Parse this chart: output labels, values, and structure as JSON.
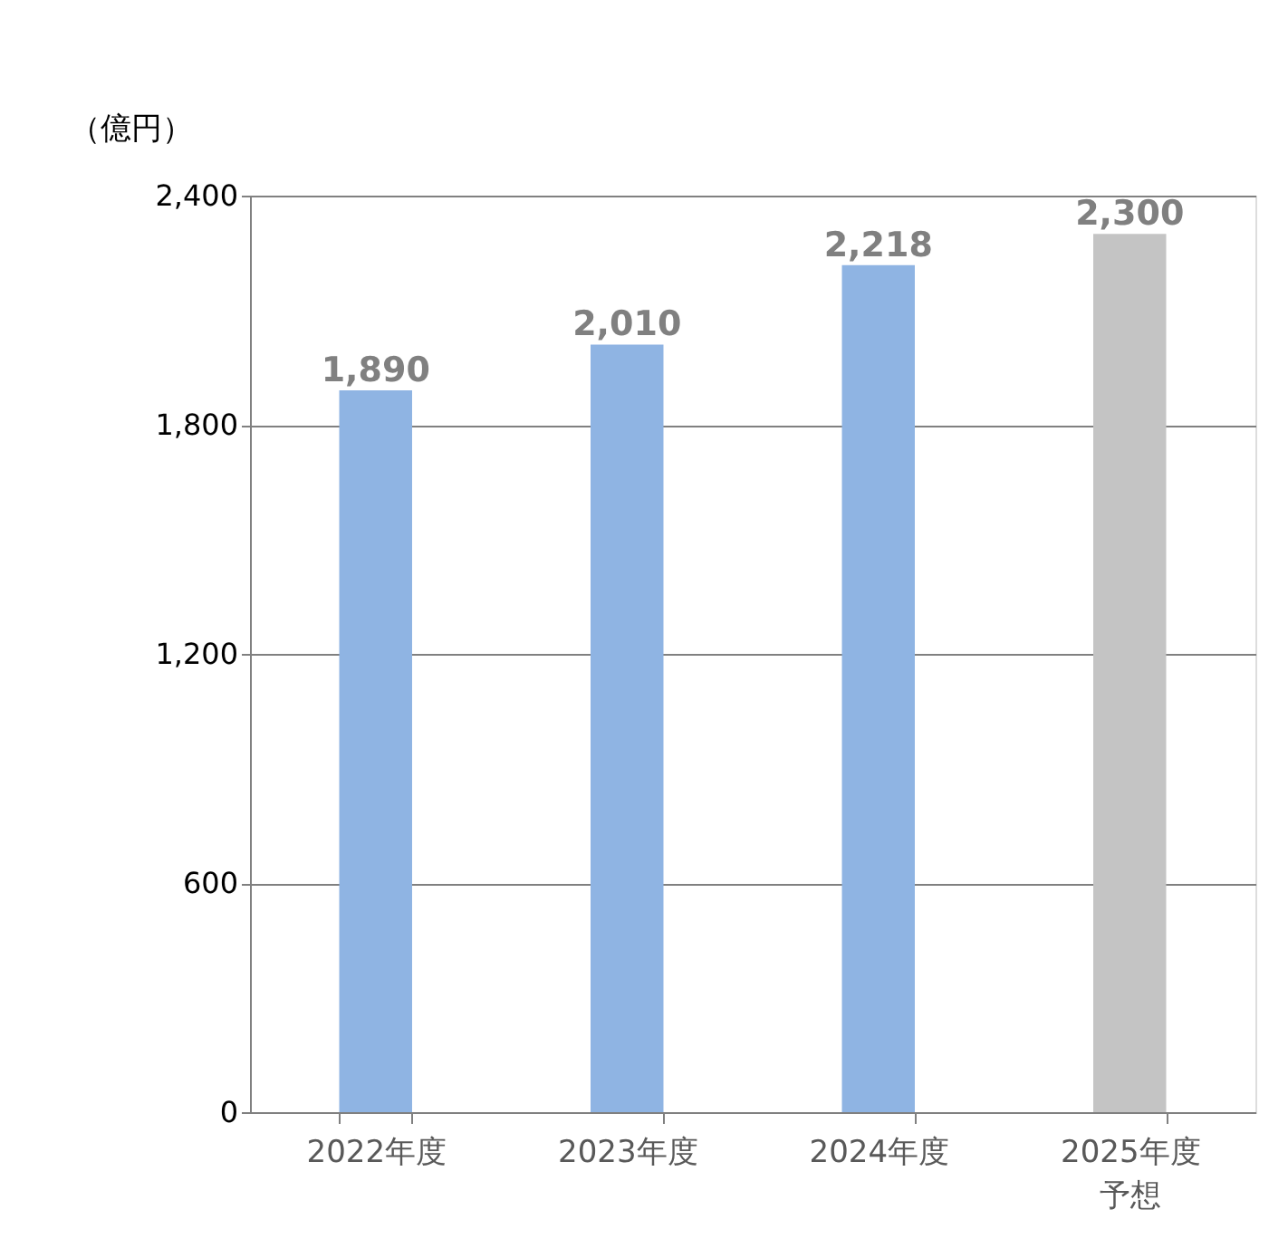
{
  "chart_data": {
    "type": "bar",
    "ylabel": "（億円）",
    "categories": [
      "2022年度",
      "2023年度",
      "2024年度",
      "2025年度予想"
    ],
    "values": [
      1890,
      2010,
      2218,
      2300
    ],
    "value_labels": [
      "1,890",
      "2,010",
      "2,218",
      "2,300"
    ],
    "colors": [
      "#8fb4e3",
      "#8fb4e3",
      "#8fb4e3",
      "#c4c4c4"
    ],
    "ylim": [
      0,
      2400
    ],
    "yticks": [
      0,
      {
        "value": 600,
        "label": "600"
      },
      {
        "value": 1200,
        "label": "1,200"
      },
      {
        "value": 1800,
        "label": "1,800"
      },
      {
        "value": 2400,
        "label": "2,400"
      }
    ],
    "grid": "y"
  }
}
